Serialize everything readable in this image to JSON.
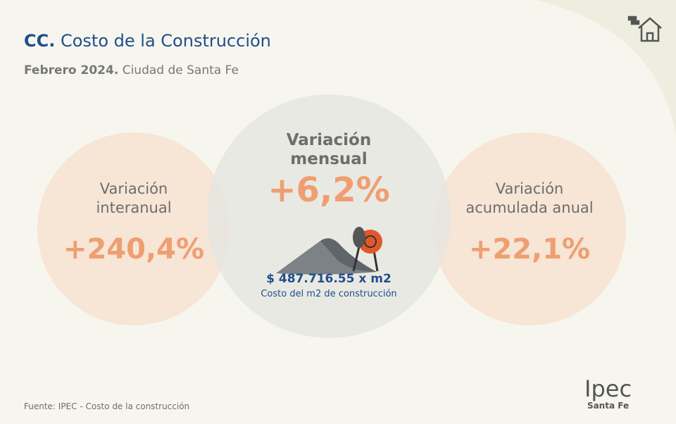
{
  "header": {
    "title_prefix": "CC.",
    "title": "Costo de la Construcción",
    "date": "Febrero 2024.",
    "location": "Ciudad de Santa Fe"
  },
  "cards": [
    {
      "label_lines": [
        "Variación",
        "interanual"
      ],
      "value": "+240,4%"
    },
    {
      "label_lines": [
        "Variación",
        "mensual"
      ],
      "value": "+6,2%",
      "price": "$ 487.716.55 x m2",
      "price_caption": "Costo del m2 de construcción"
    },
    {
      "label_lines": [
        "Variación",
        "acumulada anual"
      ],
      "value": "+22,1%"
    }
  ],
  "footer": {
    "source": "Fuente: IPEC - Costo de la construcción",
    "logo_name": "Ipec",
    "logo_place": "Santa Fe"
  }
}
